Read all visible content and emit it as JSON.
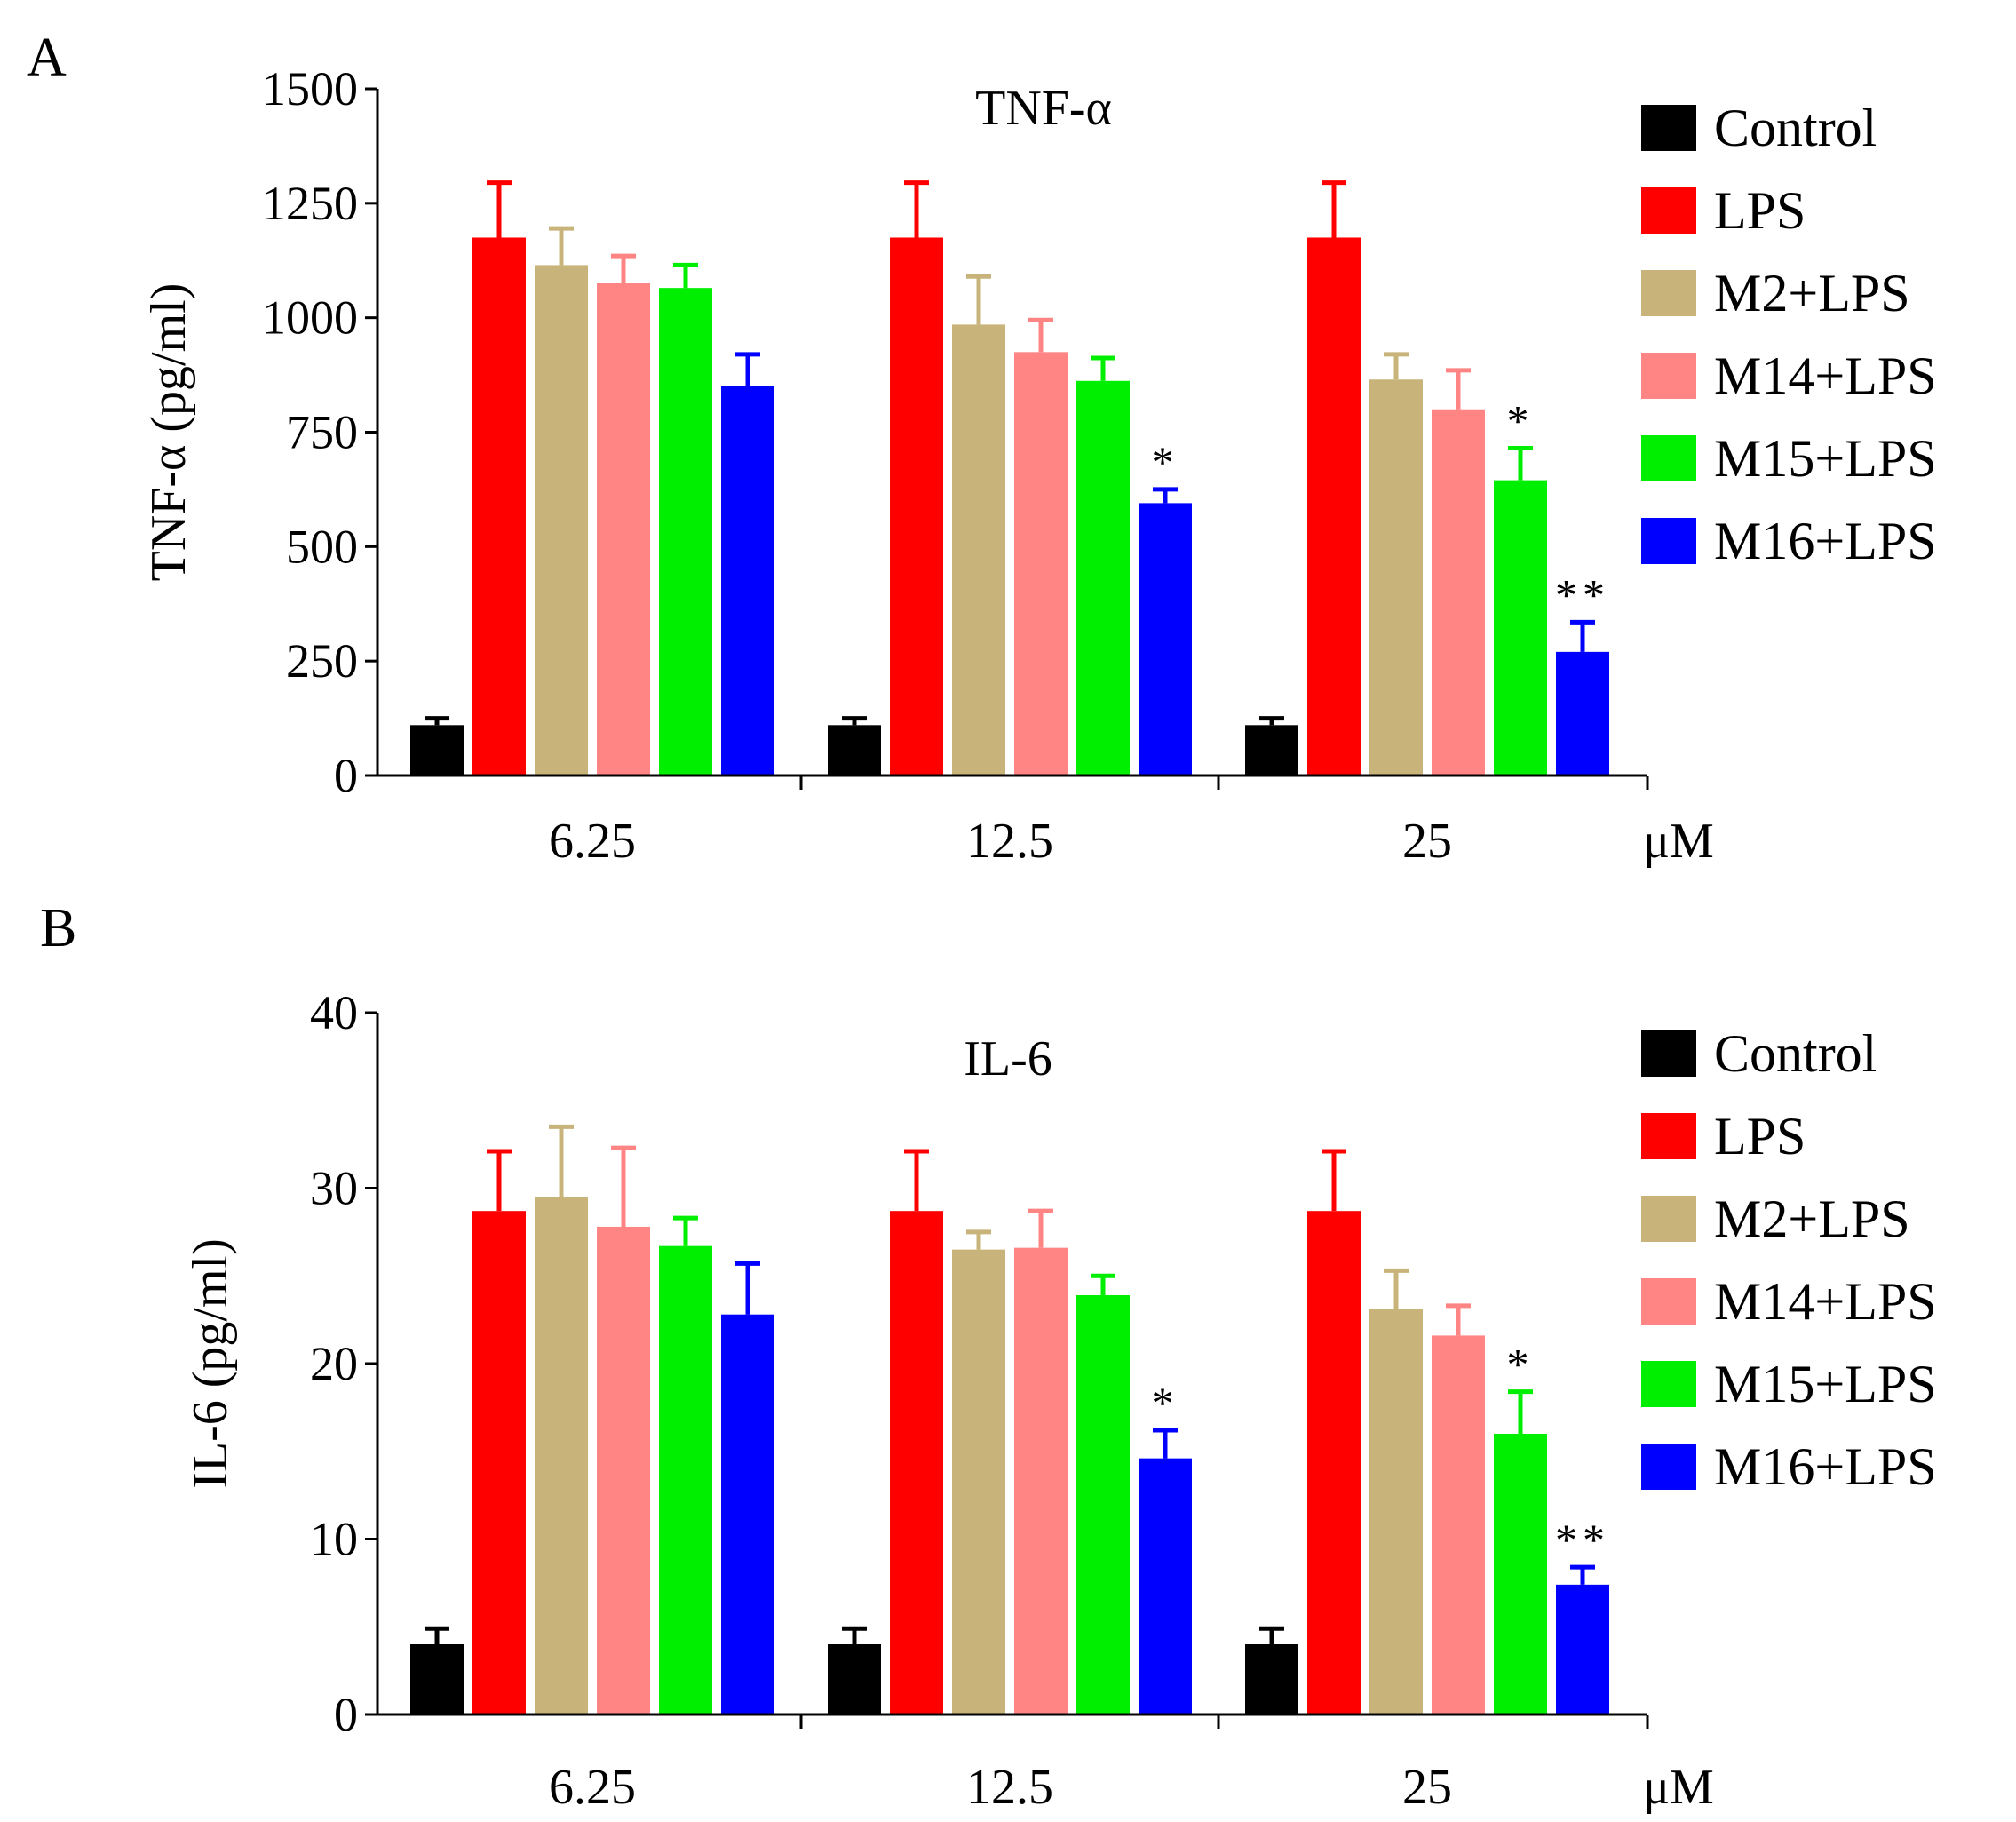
{
  "chart_data": [
    {
      "panel_label": "A",
      "type": "bar",
      "title": "TNF-α",
      "ylabel": "TNF-α (pg/ml)",
      "x_unit": "μM",
      "ylim": [
        0,
        1500
      ],
      "yticks": [
        0,
        250,
        500,
        750,
        1000,
        1250,
        1500
      ],
      "categories": [
        "6.25",
        "12.5",
        "25"
      ],
      "series": [
        {
          "name": "Control",
          "color": "#000000",
          "values": [
            110,
            110,
            110
          ],
          "errors": [
            15,
            15,
            15
          ],
          "annotations": [
            "",
            "",
            ""
          ]
        },
        {
          "name": "LPS",
          "color": "#ff0000",
          "values": [
            1175,
            1175,
            1175
          ],
          "errors": [
            120,
            120,
            120
          ],
          "annotations": [
            "",
            "",
            ""
          ]
        },
        {
          "name": "M2+LPS",
          "color": "#c8b47b",
          "values": [
            1115,
            985,
            865
          ],
          "errors": [
            80,
            105,
            55
          ],
          "annotations": [
            "",
            "",
            ""
          ]
        },
        {
          "name": "M14+LPS",
          "color": "#ff8585",
          "values": [
            1075,
            925,
            800
          ],
          "errors": [
            60,
            70,
            85
          ],
          "annotations": [
            "",
            "",
            ""
          ]
        },
        {
          "name": "M15+LPS",
          "color": "#00ee00",
          "values": [
            1065,
            862,
            645
          ],
          "errors": [
            50,
            50,
            70
          ],
          "annotations": [
            "",
            "",
            "*"
          ]
        },
        {
          "name": "M16+LPS",
          "color": "#0000ff",
          "values": [
            850,
            595,
            270
          ],
          "errors": [
            70,
            30,
            65
          ],
          "annotations": [
            "",
            "*",
            "**"
          ]
        }
      ]
    },
    {
      "panel_label": "B",
      "type": "bar",
      "title": "IL-6",
      "ylabel": "IL-6 (pg/ml)",
      "x_unit": "μM",
      "ylim": [
        0,
        40
      ],
      "yticks": [
        0,
        10,
        20,
        30,
        40
      ],
      "categories": [
        "6.25",
        "12.5",
        "25"
      ],
      "series": [
        {
          "name": "Control",
          "color": "#000000",
          "values": [
            4,
            4,
            4
          ],
          "errors": [
            0.9,
            0.9,
            0.9
          ],
          "annotations": [
            "",
            "",
            ""
          ]
        },
        {
          "name": "LPS",
          "color": "#ff0000",
          "values": [
            28.7,
            28.7,
            28.7
          ],
          "errors": [
            3.4,
            3.4,
            3.4
          ],
          "annotations": [
            "",
            "",
            ""
          ]
        },
        {
          "name": "M2+LPS",
          "color": "#c8b47b",
          "values": [
            29.5,
            26.5,
            23.1
          ],
          "errors": [
            4,
            1,
            2.2
          ],
          "annotations": [
            "",
            "",
            ""
          ]
        },
        {
          "name": "M14+LPS",
          "color": "#ff8585",
          "values": [
            27.8,
            26.6,
            21.6
          ],
          "errors": [
            4.5,
            2.1,
            1.7
          ],
          "annotations": [
            "",
            "",
            ""
          ]
        },
        {
          "name": "M15+LPS",
          "color": "#00ee00",
          "values": [
            26.7,
            23.9,
            16
          ],
          "errors": [
            1.6,
            1.1,
            2.4
          ],
          "annotations": [
            "",
            "",
            "*"
          ]
        },
        {
          "name": "M16+LPS",
          "color": "#0000ff",
          "values": [
            22.8,
            14.6,
            7.4
          ],
          "errors": [
            2.9,
            1.6,
            1
          ],
          "annotations": [
            "",
            "*",
            "**"
          ]
        }
      ]
    }
  ]
}
